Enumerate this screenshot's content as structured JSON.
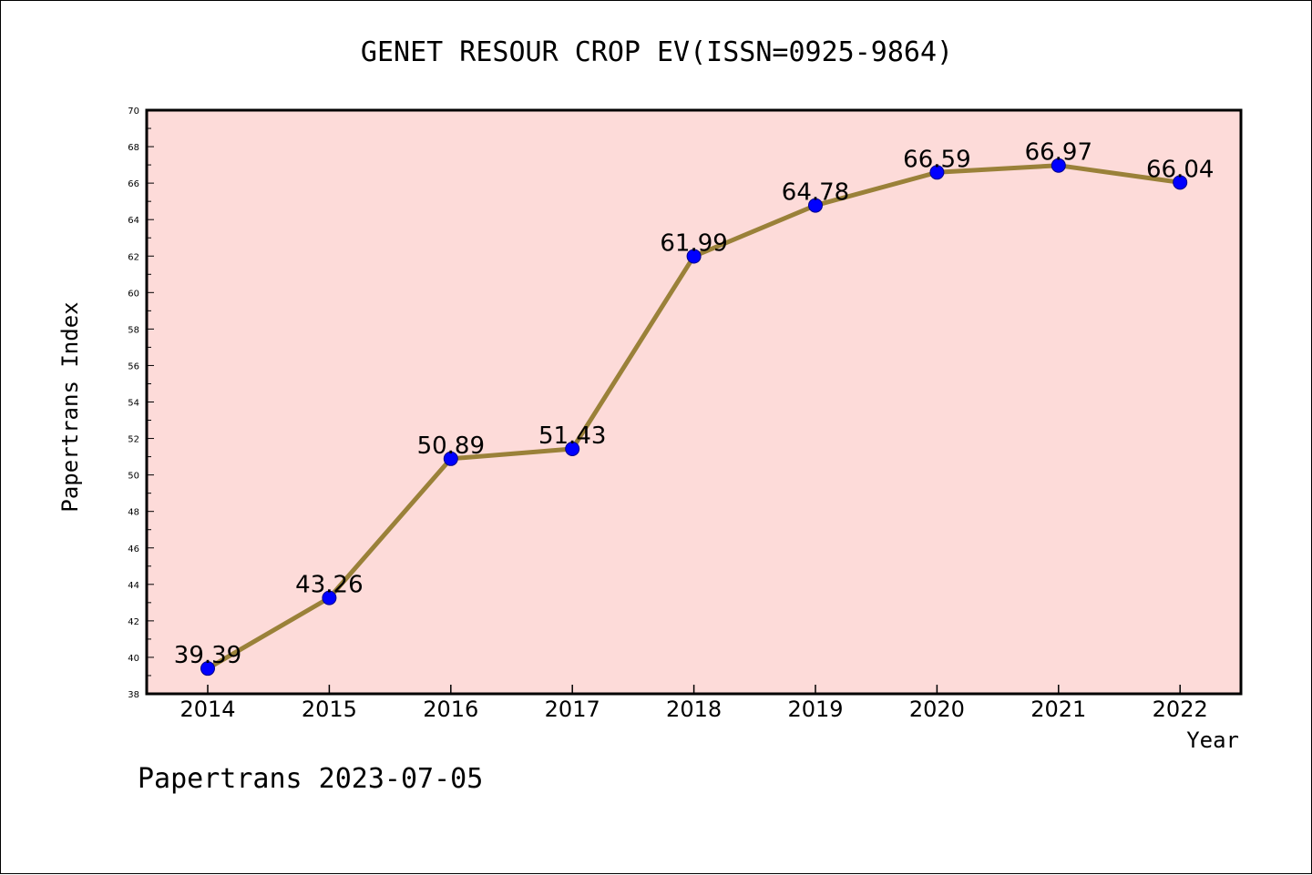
{
  "chart_data": {
    "type": "line",
    "title": "GENET RESOUR CROP EV(ISSN=0925-9864)",
    "xlabel": "Year",
    "ylabel": "Papertrans Index",
    "categories": [
      "2014",
      "2015",
      "2016",
      "2017",
      "2018",
      "2019",
      "2020",
      "2021",
      "2022"
    ],
    "values": [
      39.39,
      43.26,
      50.89,
      51.43,
      61.99,
      64.78,
      66.59,
      66.97,
      66.04
    ],
    "data_labels": [
      "39.39",
      "43.26",
      "50.89",
      "51.43",
      "61.99",
      "64.78",
      "66.59",
      "66.97",
      "66.04"
    ],
    "ylim": [
      38,
      70
    ],
    "yticks": [
      "38",
      "40",
      "42",
      "44",
      "46",
      "48",
      "50",
      "52",
      "54",
      "56",
      "58",
      "60",
      "62",
      "64",
      "66",
      "68",
      "70"
    ],
    "grid": false,
    "legend": "none",
    "colors": {
      "plot_background": "#fddbd9",
      "line": "#9a8139",
      "marker": "#0000ff",
      "axis": "#000000"
    }
  },
  "footer": {
    "text": "Papertrans 2023-07-05"
  }
}
